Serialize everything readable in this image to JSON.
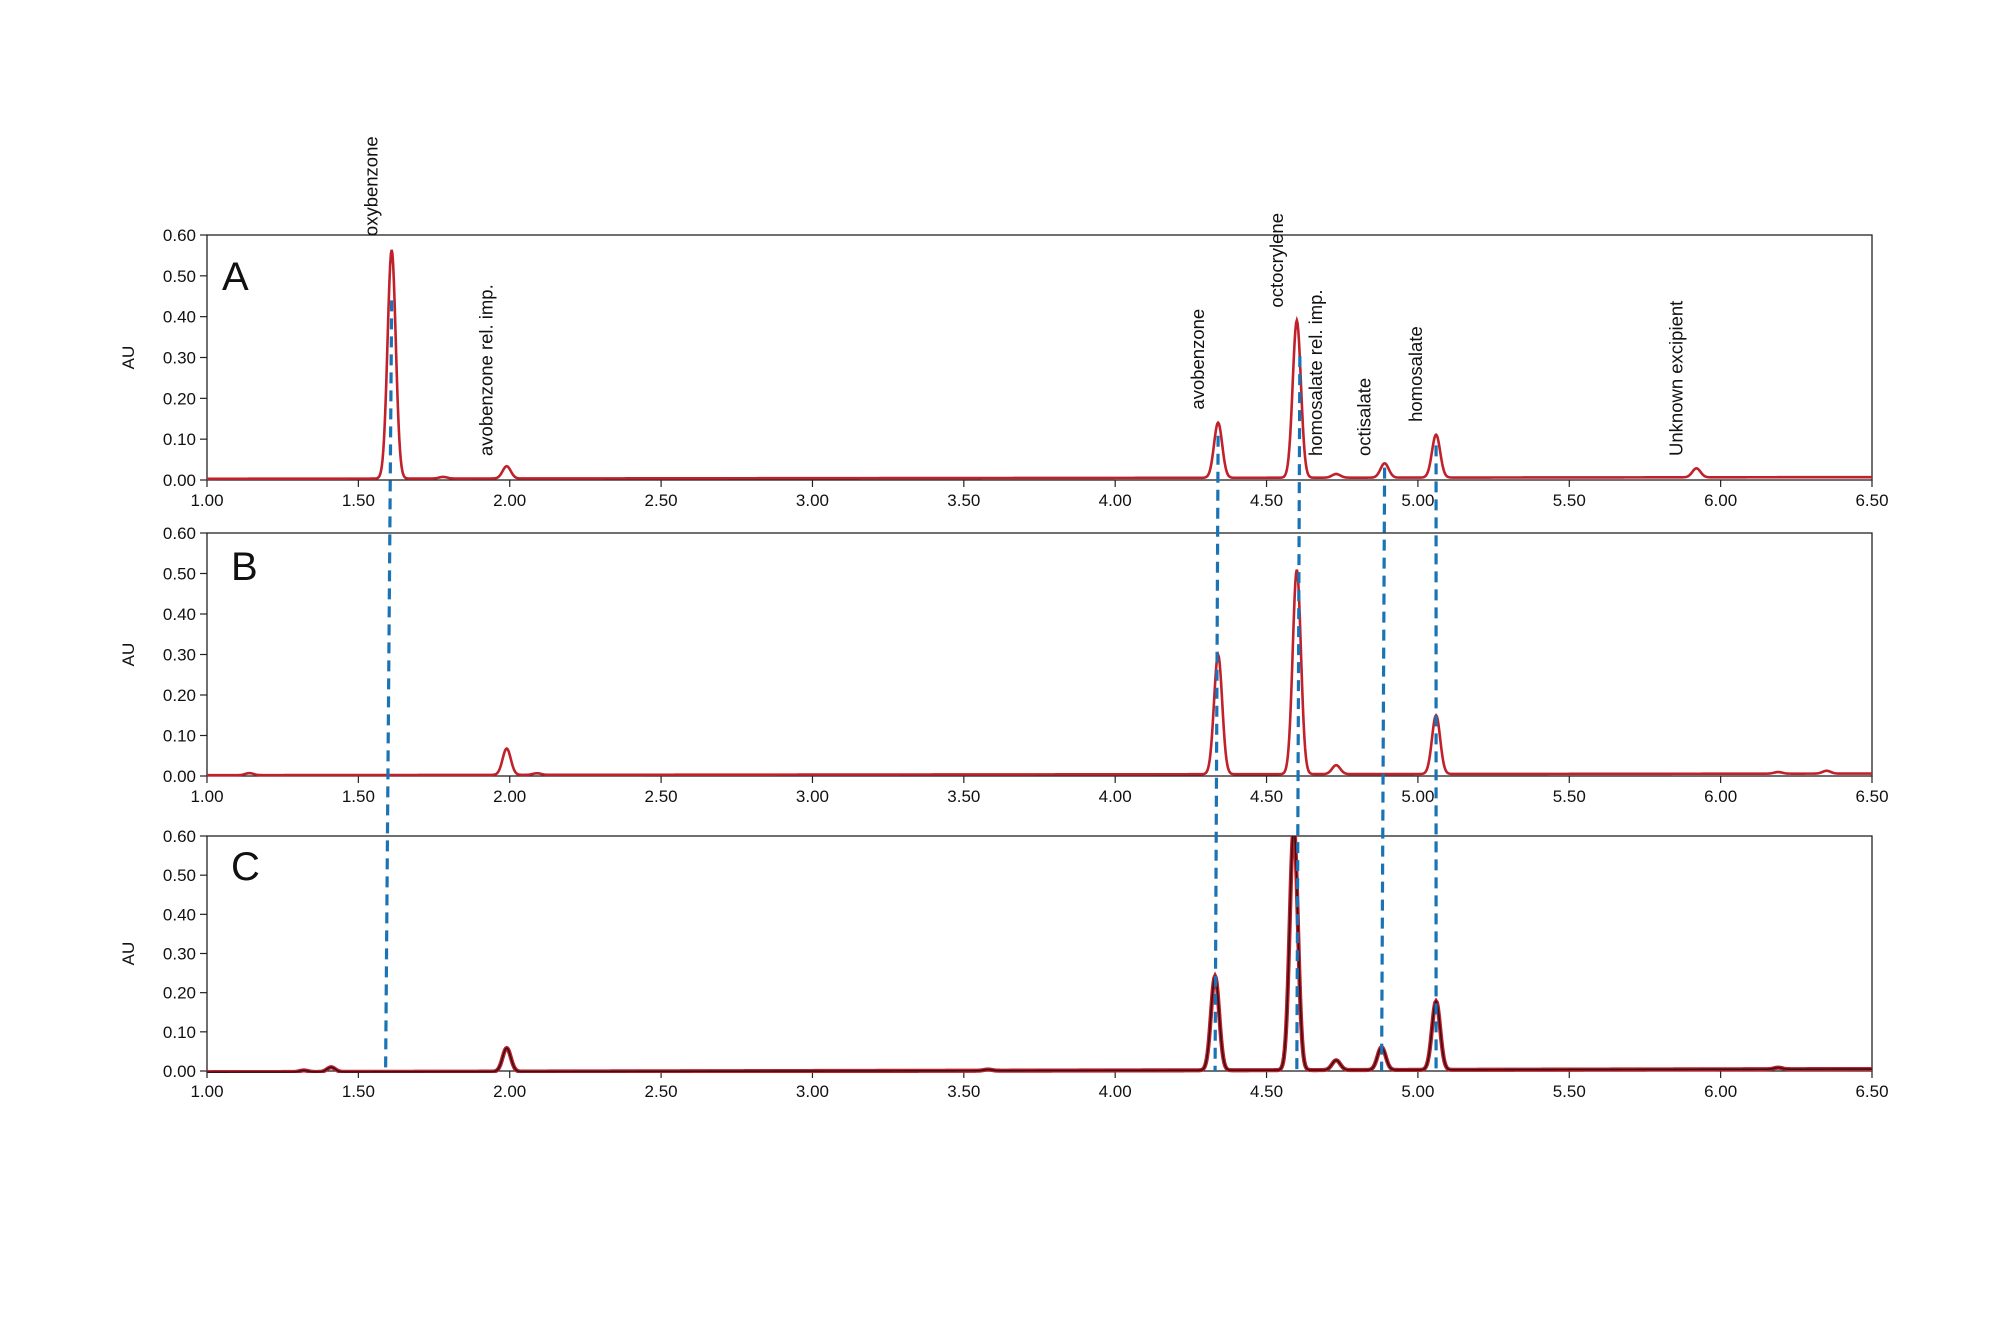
{
  "colors": {
    "trace": "#c0212b",
    "trace_dark": "#3a1015",
    "guide": "#1a73b5",
    "frame": "#222222"
  },
  "chart_data": {
    "type": "line",
    "xlim": [
      1.0,
      6.5
    ],
    "ylim": [
      0.0,
      0.6
    ],
    "x_ticks": [
      "1.00",
      "1.50",
      "2.00",
      "2.50",
      "3.00",
      "3.50",
      "4.00",
      "4.50",
      "5.00",
      "5.50",
      "6.00",
      "6.50"
    ],
    "y_ticks": [
      "0.00",
      "0.10",
      "0.20",
      "0.30",
      "0.40",
      "0.50",
      "0.60"
    ],
    "ylabel": "AU",
    "xlabel": "",
    "grid": false,
    "panels": [
      {
        "label": "A",
        "baseline": 0.003,
        "drift": 0.004,
        "dark_overlay": false,
        "peaks": [
          {
            "x": 1.61,
            "height": 0.56,
            "name": "oxybenzone"
          },
          {
            "x": 1.78,
            "height": 0.004,
            "name": ""
          },
          {
            "x": 1.99,
            "height": 0.03,
            "name": "avobenzone rel. imp."
          },
          {
            "x": 4.34,
            "height": 0.135,
            "name": "avobenzone"
          },
          {
            "x": 4.6,
            "height": 0.385,
            "name": "octocrylene"
          },
          {
            "x": 4.73,
            "height": 0.009,
            "name": "homosalate rel. imp."
          },
          {
            "x": 4.89,
            "height": 0.035,
            "name": "octisalate"
          },
          {
            "x": 5.06,
            "height": 0.105,
            "name": "homosalate"
          },
          {
            "x": 5.92,
            "height": 0.022,
            "name": "Unknown excipient"
          }
        ]
      },
      {
        "label": "B",
        "baseline": 0.002,
        "drift": 0.004,
        "dark_overlay": false,
        "peaks": [
          {
            "x": 1.14,
            "height": 0.005
          },
          {
            "x": 1.99,
            "height": 0.065
          },
          {
            "x": 2.09,
            "height": 0.004
          },
          {
            "x": 4.34,
            "height": 0.295
          },
          {
            "x": 4.6,
            "height": 0.505
          },
          {
            "x": 4.73,
            "height": 0.022
          },
          {
            "x": 5.06,
            "height": 0.145
          },
          {
            "x": 6.19,
            "height": 0.004
          },
          {
            "x": 6.35,
            "height": 0.007
          }
        ]
      },
      {
        "label": "C",
        "baseline": -0.003,
        "drift": 0.008,
        "dark_overlay": true,
        "peaks": [
          {
            "x": 1.32,
            "height": 0.004
          },
          {
            "x": 1.41,
            "height": 0.012
          },
          {
            "x": 1.99,
            "height": 0.06
          },
          {
            "x": 3.58,
            "height": 0.003
          },
          {
            "x": 4.33,
            "height": 0.24
          },
          {
            "x": 4.59,
            "height": 0.62
          },
          {
            "x": 4.73,
            "height": 0.025
          },
          {
            "x": 4.88,
            "height": 0.058
          },
          {
            "x": 5.06,
            "height": 0.175
          },
          {
            "x": 6.19,
            "height": 0.004
          }
        ]
      }
    ],
    "guide_lines": [
      {
        "name": "oxybenzone",
        "x_top": 1.61,
        "x_bottom": 1.59
      },
      {
        "name": "avobenzone",
        "x_top": 4.34,
        "x_bottom": 4.33
      },
      {
        "name": "octocrylene",
        "x_top": 4.61,
        "x_bottom": 4.6
      },
      {
        "name": "octisalate",
        "x_top": 4.89,
        "x_bottom": 4.88
      },
      {
        "name": "homosalate",
        "x_top": 5.06,
        "x_bottom": 5.06
      }
    ]
  }
}
